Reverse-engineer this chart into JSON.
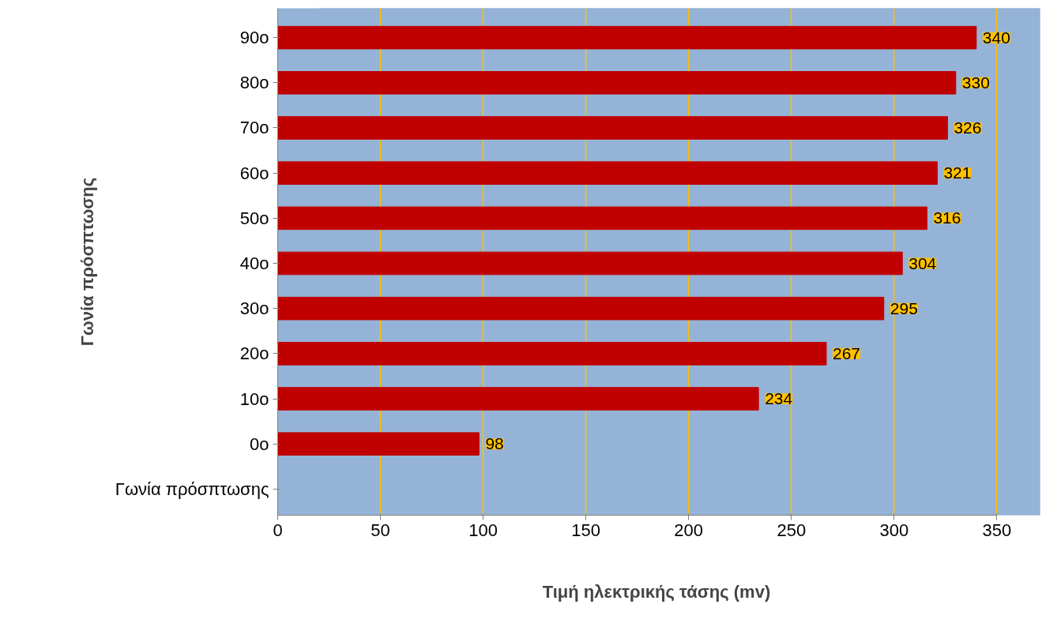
{
  "chart_data": {
    "type": "bar",
    "orientation": "horizontal",
    "categories": [
      "90o",
      "80o",
      "70o",
      "60o",
      "50o",
      "40o",
      "30o",
      "20o",
      "10o",
      "0o",
      "Γωνία πρόσπτωσης"
    ],
    "values": [
      340,
      330,
      326,
      321,
      316,
      304,
      295,
      267,
      234,
      98,
      null
    ],
    "color": "#c00000",
    "xlabel": "Τιμή ηλεκτρικής  τάσης (mv)",
    "ylabel": "Γωνία πρόσπτωσης",
    "xlim": [
      0,
      350
    ],
    "xticks": [
      0,
      50,
      100,
      150,
      200,
      250,
      300,
      350
    ],
    "grid": "x",
    "data_labels": true
  }
}
